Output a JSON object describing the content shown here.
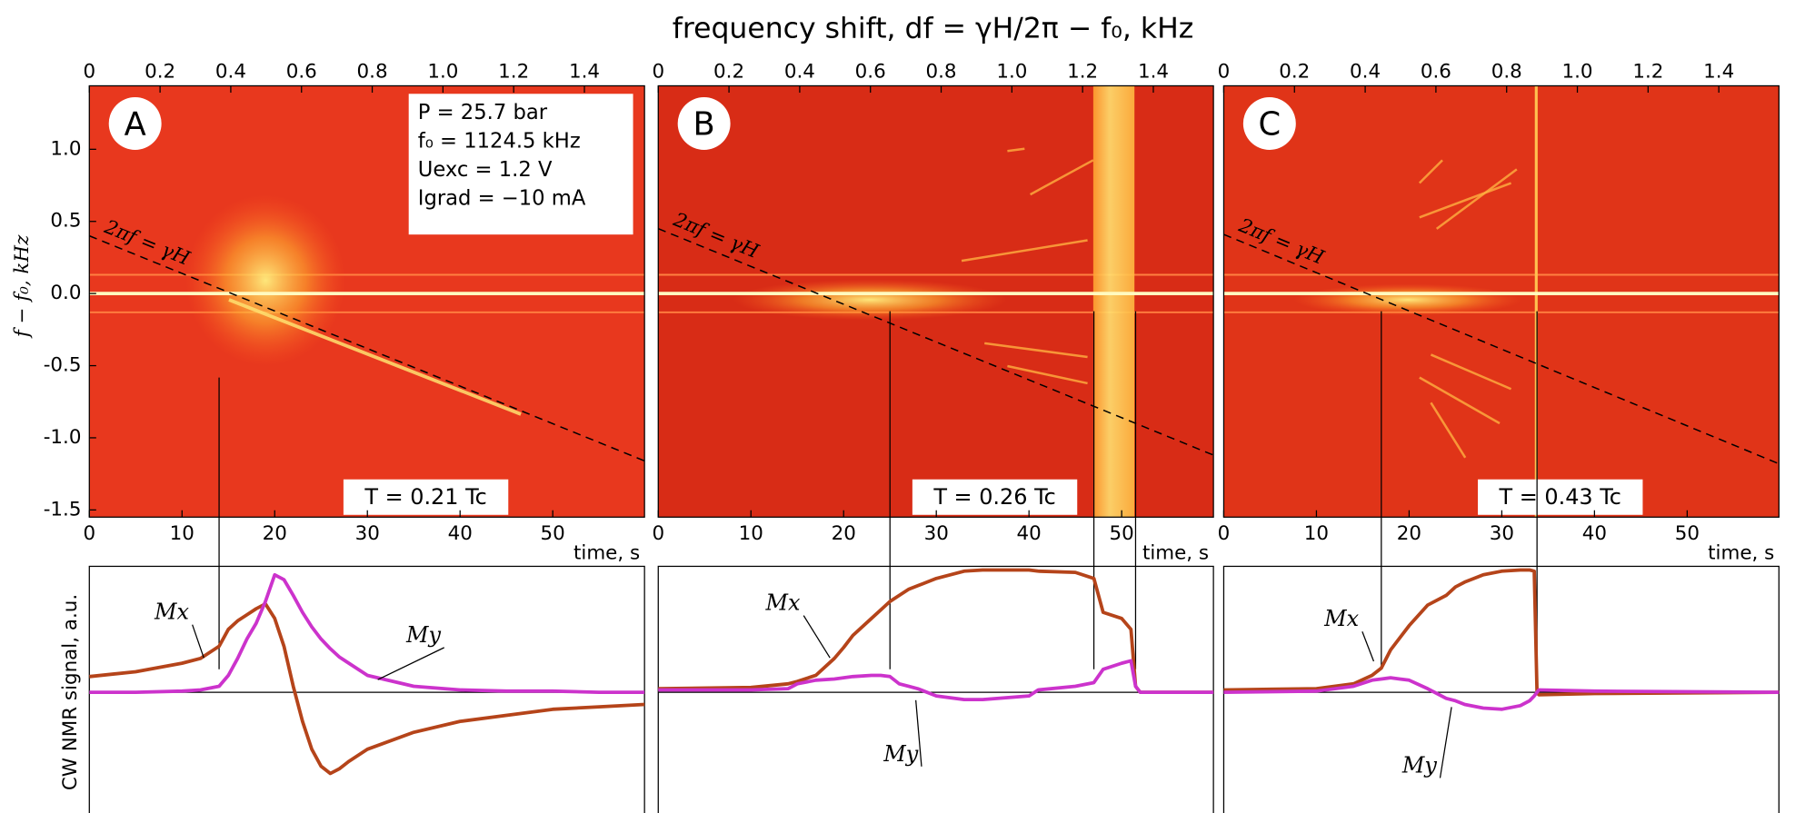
{
  "title": "frequency shift, df = γH/2π − f₀, kHz",
  "y_label_top": "f − f₀, kHz",
  "y_label_bottom": "CW NMR signal, a.u.",
  "chart_data": [
    {
      "type": "line",
      "label": "A",
      "temperature": "T = 0.21 Tc",
      "annotations": [
        "P = 25.7 bar",
        "f₀ = 1124.5 kHz",
        "Uexc = 1.2 V",
        "Igrad = −10 mA"
      ],
      "x2lim": [
        0,
        1.57
      ],
      "x2ticks": [
        0,
        0.2,
        0.4,
        0.6,
        0.8,
        {
          "value": 1,
          "label": "1.0"
        },
        1.2,
        1.4
      ],
      "xlim": [
        0,
        59.9
      ],
      "xticks": [
        0,
        10,
        20,
        30,
        40,
        50
      ],
      "xlabel": "time, s",
      "spectrum_ylim": [
        -1.55,
        1.44
      ],
      "spectrum_yticks": [
        {
          "value": 1,
          "label": "1.0"
        },
        0.5,
        {
          "value": 0,
          "label": "0.0"
        },
        -0.5,
        {
          "value": -1,
          "label": "-1.0"
        },
        -1.5
      ],
      "resonance": {
        "label": "2πf = γH",
        "x": [
          0,
          59.9
        ],
        "y": [
          0.4,
          -1.16
        ]
      },
      "events": [
        14
      ],
      "ylim": [
        -1,
        1.04
      ],
      "x": [
        0,
        5,
        10,
        12,
        14,
        15,
        16,
        17,
        18,
        19,
        20,
        21,
        22,
        23,
        24,
        25,
        26,
        27,
        28,
        30,
        35,
        40,
        45,
        50,
        55,
        59.9
      ],
      "series": [
        {
          "name": "Mx",
          "color": "#b5441a",
          "values": [
            0.13,
            0.17,
            0.24,
            0.28,
            0.38,
            0.52,
            0.59,
            0.64,
            0.69,
            0.73,
            0.61,
            0.38,
            0.05,
            -0.24,
            -0.47,
            -0.61,
            -0.67,
            -0.63,
            -0.57,
            -0.47,
            -0.33,
            -0.24,
            -0.19,
            -0.14,
            -0.12,
            -0.1
          ]
        },
        {
          "name": "My",
          "color": "#cc33cc",
          "values": [
            0,
            0,
            0.01,
            0.02,
            0.05,
            0.14,
            0.28,
            0.44,
            0.57,
            0.75,
            0.97,
            0.93,
            0.8,
            0.66,
            0.54,
            0.44,
            0.36,
            0.29,
            0.24,
            0.14,
            0.05,
            0.02,
            0.01,
            0.01,
            0,
            0
          ]
        }
      ]
    },
    {
      "type": "line",
      "label": "B",
      "temperature": "T = 0.26 Tc",
      "x2lim": [
        0,
        1.57
      ],
      "x2ticks": [
        0,
        0.2,
        0.4,
        0.6,
        0.8,
        {
          "value": 1,
          "label": "1.0"
        },
        1.2,
        1.4
      ],
      "xlim": [
        0,
        59.9
      ],
      "xticks": [
        0,
        10,
        20,
        30,
        40,
        50
      ],
      "xlabel": "time, s",
      "spectrum_ylim": [
        -1.55,
        1.44
      ],
      "resonance": {
        "label": "2πf = γH",
        "x": [
          0,
          59.9
        ],
        "y": [
          0.45,
          -1.12
        ]
      },
      "events": [
        25,
        47,
        51.5
      ],
      "ylim": [
        -1,
        1.04
      ],
      "x": [
        0,
        10,
        14,
        15,
        17,
        19,
        20,
        21,
        23,
        24,
        25,
        26,
        27,
        28,
        30,
        33,
        35,
        40,
        41,
        45,
        47,
        48,
        50,
        51,
        51.5,
        52,
        59.9
      ],
      "series": [
        {
          "name": "Mx",
          "color": "#b5441a",
          "values": [
            0.03,
            0.04,
            0.07,
            0.09,
            0.14,
            0.28,
            0.37,
            0.47,
            0.61,
            0.68,
            0.75,
            0.8,
            0.85,
            0.88,
            0.94,
            1.0,
            1.01,
            1.01,
            1.0,
            0.99,
            0.94,
            0.66,
            0.61,
            0.52,
            0.05,
            0,
            0
          ]
        },
        {
          "name": "My",
          "color": "#cc33cc",
          "values": [
            0.02,
            0.02,
            0.03,
            0.07,
            0.1,
            0.11,
            0.12,
            0.13,
            0.14,
            0.14,
            0.13,
            0.07,
            0.05,
            0.03,
            -0.03,
            -0.06,
            -0.06,
            -0.03,
            0.02,
            0.05,
            0.08,
            0.19,
            0.24,
            0.26,
            0.05,
            0,
            0
          ]
        }
      ]
    },
    {
      "type": "line",
      "label": "C",
      "temperature": "T = 0.43 Tc",
      "x2lim": [
        0,
        1.57
      ],
      "x2ticks": [
        0,
        0.2,
        0.4,
        0.6,
        0.8,
        {
          "value": 1,
          "label": "1.0"
        },
        1.2,
        1.4
      ],
      "xlim": [
        0,
        59.9
      ],
      "xticks": [
        0,
        10,
        20,
        30,
        40,
        50
      ],
      "xlabel": "time, s",
      "spectrum_ylim": [
        -1.55,
        1.44
      ],
      "resonance": {
        "label": "2πf = γH",
        "x": [
          0,
          59.9
        ],
        "y": [
          0.41,
          -1.18
        ]
      },
      "events": [
        17,
        33.8
      ],
      "ylim": [
        -1,
        1.04
      ],
      "x": [
        0,
        10,
        14,
        16,
        17,
        18,
        19,
        20,
        22,
        24,
        25,
        26,
        28,
        30,
        32,
        33,
        33.5,
        33.8,
        34,
        40,
        59.9
      ],
      "series": [
        {
          "name": "Mx",
          "color": "#b5441a",
          "values": [
            0.02,
            0.03,
            0.07,
            0.14,
            0.2,
            0.35,
            0.45,
            0.55,
            0.72,
            0.8,
            0.87,
            0.91,
            0.97,
            1.0,
            1.01,
            1.01,
            1.0,
            0,
            -0.02,
            -0.01,
            0
          ]
        },
        {
          "name": "My",
          "color": "#cc33cc",
          "values": [
            0,
            0.01,
            0.05,
            0.1,
            0.11,
            0.12,
            0.11,
            0.1,
            0.03,
            -0.05,
            -0.07,
            -0.1,
            -0.13,
            -0.14,
            -0.11,
            -0.07,
            -0.03,
            0,
            0.02,
            0.01,
            0
          ]
        }
      ]
    }
  ]
}
